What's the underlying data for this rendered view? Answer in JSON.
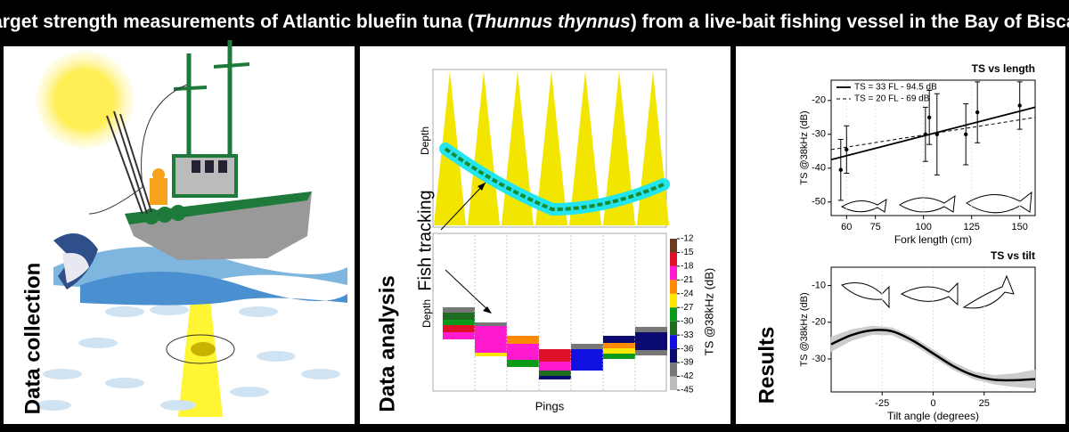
{
  "title": {
    "before": "Target strength measurements of Atlantic bluefin tuna (",
    "italic": "Thunnus thynnus",
    "after": ") from a live-bait fishing vessel in the Bay of Biscay"
  },
  "panels": [
    {
      "label": "Data collection"
    },
    {
      "label": "Data analysis",
      "annotation": "Fish tracking",
      "depth_top": "Depth",
      "depth_bottom": "Depth",
      "x_label": "Pings",
      "colorbar": {
        "label": "TS @38kHz (dB)",
        "ticks": [
          -12,
          -15,
          -18,
          -21,
          -24,
          -27,
          -30,
          -33,
          -36,
          -39,
          -42,
          -45
        ],
        "colors": [
          "#6b3a1f",
          "#e0102a",
          "#ff1ad0",
          "#ff8a00",
          "#ffe600",
          "#0a9a1a",
          "#1f6b1f",
          "#1010e0",
          "#0a0a70",
          "#777777",
          "#bbbbbb"
        ]
      }
    },
    {
      "label": "Results"
    }
  ],
  "chart_data": [
    {
      "type": "scatter",
      "title": "TS vs length",
      "x_label": "Fork length (cm)",
      "y_label": "TS @38kHz (dB)",
      "xlim": [
        52,
        158
      ],
      "ylim": [
        -54,
        -14
      ],
      "xticks": [
        60,
        75,
        100,
        125,
        150
      ],
      "yticks": [
        -20,
        -30,
        -40,
        -50
      ],
      "series": [
        {
          "name": "TS = 33 FL - 94.5 dB",
          "style": "solid",
          "color": "#000000",
          "x": [
            52,
            158
          ],
          "values": [
            -37.5,
            -22
          ]
        },
        {
          "name": "TS = 20 FL - 69 dB",
          "style": "dashed",
          "color": "#000000",
          "x": [
            52,
            158
          ],
          "values": [
            -34.5,
            -25
          ]
        },
        {
          "color": "#000000",
          "x": [
            57,
            60,
            101,
            103,
            107,
            122,
            128,
            150
          ],
          "values": [
            -40.5,
            -34.5,
            -30,
            -25,
            -30,
            -30,
            -23.5,
            -21.5
          ],
          "errors": [
            9,
            7,
            8,
            8,
            12,
            9,
            9,
            7
          ]
        }
      ]
    },
    {
      "type": "line",
      "title": "TS vs tilt",
      "x_label": "Tilt angle (degrees)",
      "y_label": "TS @38kHz (dB)",
      "xlim": [
        -50,
        50
      ],
      "ylim": [
        -39,
        -5
      ],
      "xticks": [
        -25,
        0,
        25
      ],
      "yticks": [
        -10,
        -20,
        -30
      ],
      "series": [
        {
          "color": "#000000",
          "band_color": "#cccccc",
          "x": [
            -50,
            -40,
            -30,
            -20,
            -10,
            0,
            10,
            20,
            30,
            40,
            50
          ],
          "values": [
            -26,
            -23.5,
            -22.2,
            -22.5,
            -25,
            -28.5,
            -32,
            -34.5,
            -35.7,
            -35.8,
            -35.5
          ],
          "ci": [
            2,
            1.5,
            1.2,
            1,
            1,
            1,
            1,
            1,
            1.2,
            1.8,
            2.5
          ]
        }
      ]
    }
  ]
}
